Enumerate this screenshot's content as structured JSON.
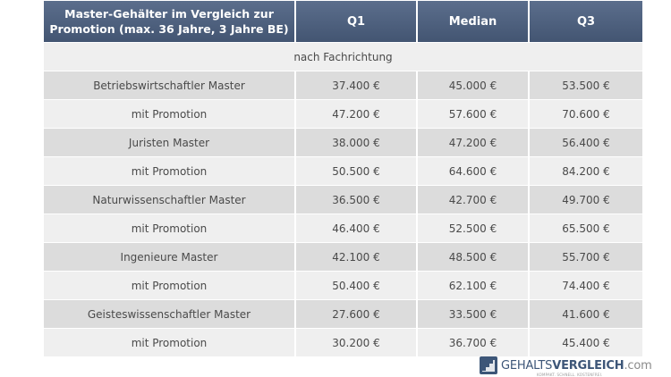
{
  "table": {
    "headers": {
      "title": "Master-Gehälter im Vergleich zur Promotion (max. 36 Jahre, 3 Jahre BE)",
      "q1": "Q1",
      "median": "Median",
      "q3": "Q3"
    },
    "section_label": "nach Fachrichtung",
    "rows": [
      {
        "label": "Betriebswirtschaftler Master",
        "q1": "37.400 €",
        "median": "45.000 €",
        "q3": "53.500 €"
      },
      {
        "label": "mit Promotion",
        "q1": "47.200 €",
        "median": "57.600 €",
        "q3": "70.600 €"
      },
      {
        "label": "Juristen Master",
        "q1": "38.000 €",
        "median": "47.200 €",
        "q3": "56.400 €"
      },
      {
        "label": "mit Promotion",
        "q1": "50.500 €",
        "median": "64.600 €",
        "q3": "84.200 €"
      },
      {
        "label": "Naturwissenschaftler Master",
        "q1": "36.500 €",
        "median": "42.700 €",
        "q3": "49.700 €"
      },
      {
        "label": "mit Promotion",
        "q1": "46.400 €",
        "median": "52.500 €",
        "q3": "65.500 €"
      },
      {
        "label": "Ingenieure Master",
        "q1": "42.100 €",
        "median": "48.500 €",
        "q3": "55.700 €"
      },
      {
        "label": "mit Promotion",
        "q1": "50.400 €",
        "median": "62.100 €",
        "q3": "74.400 €"
      },
      {
        "label": "Geisteswissenschaftler Master",
        "q1": "27.600 €",
        "median": "33.500 €",
        "q3": "41.600 €"
      },
      {
        "label": "mit Promotion",
        "q1": "30.200 €",
        "median": "36.700 €",
        "q3": "45.400 €"
      }
    ]
  },
  "logo": {
    "brand_regular": "GEHALTS",
    "brand_bold": "VERGLEICH",
    "brand_tld": ".com",
    "tagline": "KOMPAKT. SCHNELL. KOSTENFREI.",
    "icon": "stairs-icon"
  },
  "colors": {
    "header_bg": "#4e6180",
    "row_dark": "#dcdcdc",
    "row_light": "#efefef",
    "brand": "#3d5678"
  }
}
